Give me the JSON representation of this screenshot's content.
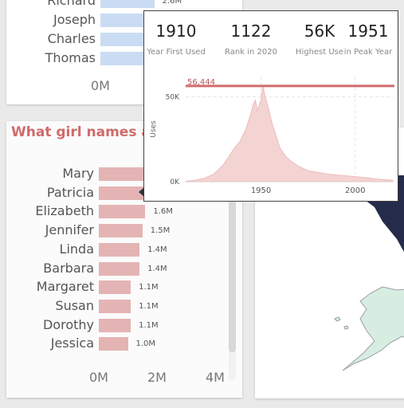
{
  "boys_chart": {
    "names": [
      "Richard",
      "Joseph",
      "Charles",
      "Thomas"
    ],
    "top_value_label": "2.6M",
    "axis_label": "0M"
  },
  "girls_chart": {
    "title": "What girl names a",
    "axis_ticks": [
      "0M",
      "2M",
      "4M"
    ],
    "scrollbar": true
  },
  "chart_data": [
    {
      "type": "bar",
      "orientation": "horizontal",
      "title": "",
      "categories": [
        "Richard",
        "Joseph",
        "Charles",
        "Thomas"
      ],
      "values": [
        2.6,
        2.6,
        2.4,
        2.3
      ],
      "value_labels": [
        "2.6M",
        "",
        "",
        ""
      ],
      "xlim": [
        0,
        4.5
      ],
      "x_ticks": [
        "0M"
      ],
      "color": "#c9dcf3"
    },
    {
      "type": "bar",
      "orientation": "horizontal",
      "title": "What girl names a",
      "categories": [
        "Mary",
        "Patricia",
        "Elizabeth",
        "Jennifer",
        "Linda",
        "Barbara",
        "Margaret",
        "Susan",
        "Dorothy",
        "Jessica"
      ],
      "values": [
        4.1,
        1.6,
        1.6,
        1.5,
        1.4,
        1.4,
        1.1,
        1.1,
        1.1,
        1.0
      ],
      "value_labels": [
        "",
        "",
        "1.6M",
        "1.5M",
        "1.4M",
        "1.4M",
        "1.1M",
        "1.1M",
        "1.1M",
        "1.0M"
      ],
      "xlim": [
        0,
        4.5
      ],
      "x_ticks": [
        "0M",
        "2M",
        "4M"
      ],
      "color": "#e4b4b4"
    },
    {
      "type": "area",
      "title": "",
      "ylabel": "Uses",
      "x_ticks": [
        "1950",
        "2000"
      ],
      "y_ticks": [
        "0K",
        "50K"
      ],
      "xlim": [
        1910,
        2020
      ],
      "ylim": [
        0,
        62000
      ],
      "reference_line": {
        "value": 56444,
        "label": "56,444",
        "color": "#d06b6b"
      },
      "color": "#f4d3d3",
      "x": [
        1910,
        1915,
        1920,
        1925,
        1930,
        1933,
        1936,
        1939,
        1942,
        1944,
        1946,
        1947,
        1948,
        1950,
        1951,
        1952,
        1954,
        1956,
        1958,
        1960,
        1963,
        1966,
        1970,
        1975,
        1980,
        1985,
        1990,
        1995,
        2000,
        2005,
        2010,
        2015,
        2020
      ],
      "y": [
        300,
        800,
        2000,
        4500,
        10000,
        15000,
        20000,
        24000,
        31000,
        38000,
        46000,
        48000,
        42000,
        48000,
        56444,
        51000,
        43000,
        34000,
        27000,
        20000,
        15000,
        12000,
        9000,
        6500,
        5500,
        4500,
        4000,
        3500,
        3000,
        2500,
        1800,
        1200,
        900
      ]
    }
  ],
  "tooltip": {
    "kpis": [
      {
        "value": "1910",
        "label": "Year First Used"
      },
      {
        "value": "1122",
        "label": "Rank in 2020"
      },
      {
        "value": "56K",
        "label": "Highest Use"
      },
      {
        "value": "1951",
        "label": "in Peak Year"
      }
    ]
  },
  "map": {
    "colors": {
      "dark_region": "#252b4a",
      "light_region": "#d8ede2",
      "outline": "#9aa0a6"
    }
  }
}
